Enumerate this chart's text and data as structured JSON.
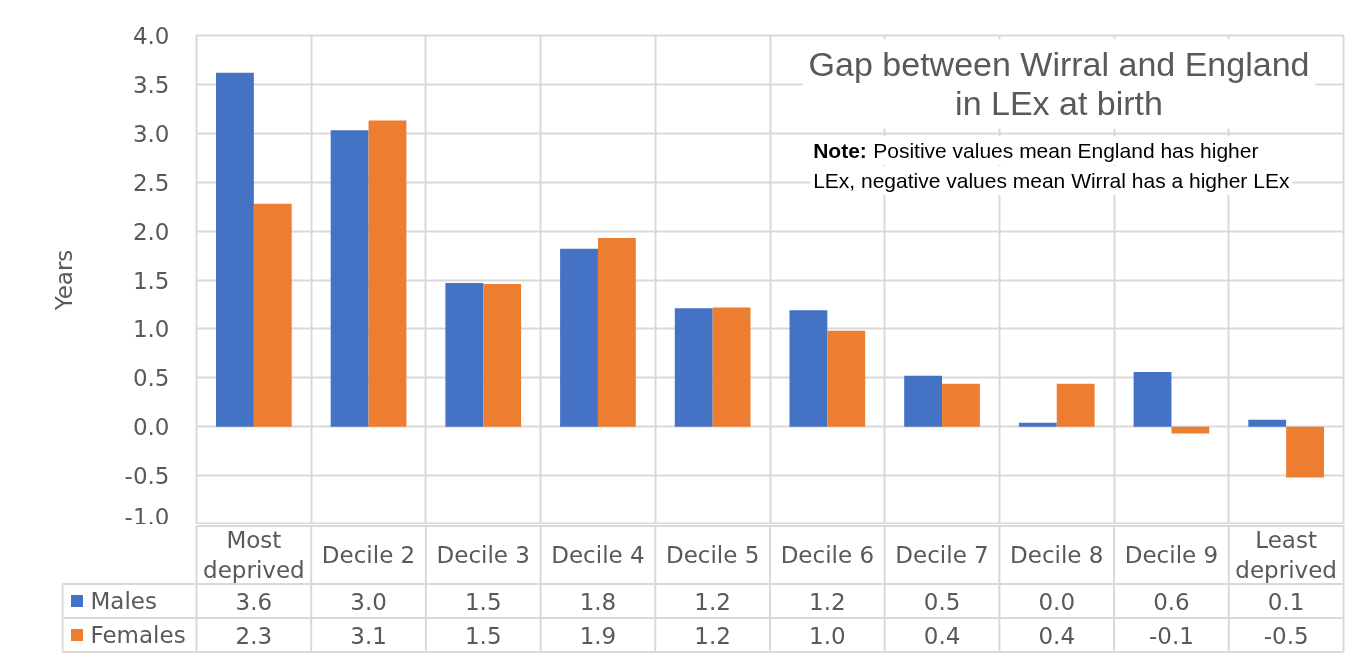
{
  "chart_data": {
    "type": "bar",
    "title": "Gap between Wirral and England in LEx at birth",
    "ylabel": "Years",
    "categories": [
      "Most deprived",
      "Decile 2",
      "Decile 3",
      "Decile 4",
      "Decile 5",
      "Decile 6",
      "Decile 7",
      "Decile 8",
      "Decile 9",
      "Least deprived"
    ],
    "series": [
      {
        "name": "Males",
        "color": "#4472c4",
        "values": [
          3.62,
          3.03,
          1.47,
          1.82,
          1.21,
          1.19,
          0.52,
          0.04,
          0.56,
          0.07
        ],
        "value_labels": [
          "3.6",
          "3.0",
          "1.5",
          "1.8",
          "1.2",
          "1.2",
          "0.5",
          "0.0",
          "0.6",
          "0.1"
        ]
      },
      {
        "name": "Females",
        "color": "#ed7d31",
        "values": [
          2.28,
          3.13,
          1.46,
          1.93,
          1.22,
          0.98,
          0.44,
          0.44,
          -0.07,
          -0.52
        ],
        "value_labels": [
          "2.3",
          "3.1",
          "1.5",
          "1.9",
          "1.2",
          "1.0",
          "0.4",
          "0.4",
          "-0.1",
          "-0.5"
        ]
      }
    ],
    "ylim": [
      -1,
      4
    ],
    "yticks": [
      {
        "value": -1,
        "label": "-1.0"
      },
      -0.5,
      {
        "value": 0,
        "label": "0.0"
      },
      0.5,
      {
        "value": 1,
        "label": "1.0"
      },
      1.5,
      {
        "value": 2,
        "label": "2.0"
      },
      2.5,
      {
        "value": 3,
        "label": "3.0"
      },
      3.5,
      {
        "value": 4,
        "label": "4.0"
      }
    ],
    "grid": true,
    "legend": "bottom",
    "annotations": [
      "Note: Positive values mean England has higher LEx, negative values mean Wirral has a higher LEx"
    ]
  }
}
